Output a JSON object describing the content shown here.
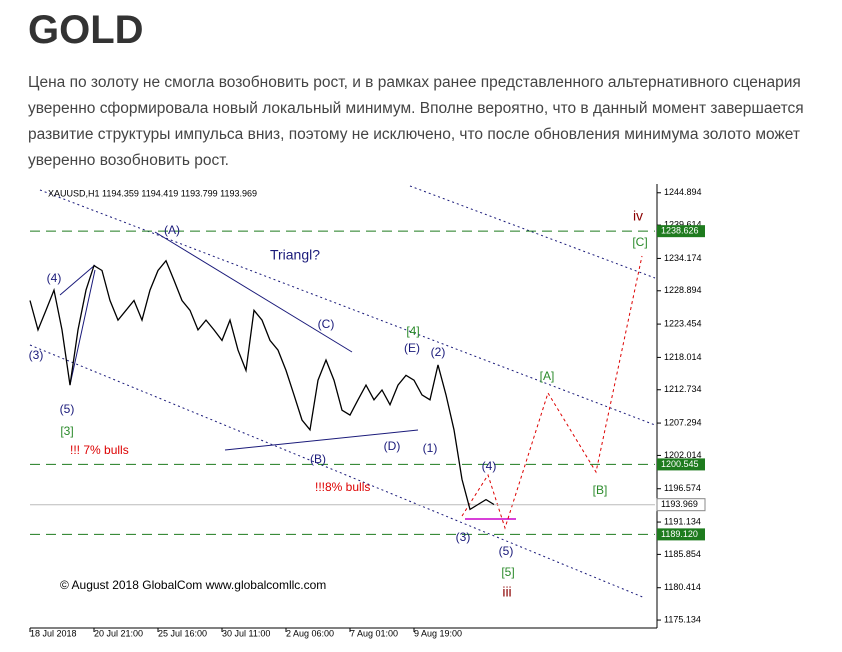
{
  "title": "GOLD",
  "paragraph": "Цена по золоту не смогла возобновить рост, и в рамках ранее представленного альтернативного сценария уверенно сформировала новый локальный минимум. Вполне вероятно, что в данный момент завершается развитие структуры импульса вниз, поэтому не исключено, что после обновления минимума золото может уверенно возобновить рост.",
  "chart_data": {
    "type": "line",
    "header": "XAUUSD,H1  1194.359 1194.419 1193.799 1193.969",
    "categories": [
      "18 Jul 2018",
      null,
      null,
      null,
      null,
      null,
      null,
      null,
      "20 Jul 21:00",
      null,
      null,
      null,
      null,
      null,
      null,
      null,
      "25 Jul 16:00",
      null,
      null,
      null,
      null,
      null,
      null,
      null,
      "30 Jul 11:00",
      null,
      null,
      null,
      null,
      null,
      null,
      null,
      "2 Aug 06:00",
      null,
      null,
      null,
      null,
      null,
      null,
      null,
      "7 Aug 01:00",
      null,
      null,
      null,
      null,
      null,
      null,
      null,
      "9 Aug 19:00",
      null,
      null,
      null,
      null,
      null,
      null,
      null,
      null,
      null,
      null
    ],
    "series": [
      {
        "name": "XAUUSD",
        "color": "#000000",
        "values": [
          1227.3,
          1222.5,
          1225.7,
          1229.0,
          1222.5,
          1213.5,
          1222.5,
          1229.0,
          1233.0,
          1232.2,
          1227.3,
          1224.1,
          1225.7,
          1227.3,
          1224.1,
          1229.0,
          1232.2,
          1233.8,
          1230.6,
          1227.3,
          1225.7,
          1222.5,
          1224.1,
          1222.5,
          1220.8,
          1224.1,
          1219.2,
          1215.9,
          1225.7,
          1224.1,
          1220.8,
          1219.2,
          1215.9,
          1211.9,
          1207.8,
          1206.2,
          1214.3,
          1217.6,
          1214.3,
          1209.4,
          1208.6,
          1211.1,
          1213.5,
          1211.1,
          1212.7,
          1210.3,
          1213.5,
          1215.1,
          1214.3,
          1211.9,
          1211.1,
          1216.8,
          1211.9,
          1206.2,
          1198.1,
          1193.2,
          1194.0,
          1194.8,
          1194.0
        ]
      }
    ],
    "ylim": [
      1174,
      1246
    ],
    "yticks": [
      1244.894,
      1239.614,
      1234.174,
      1228.894,
      1223.454,
      1218.014,
      1212.734,
      1207.294,
      1202.014,
      1196.574,
      1191.134,
      1185.854,
      1180.414,
      1175.134
    ],
    "levels": [
      {
        "value": 1238.626,
        "color": "#1e7b1e"
      },
      {
        "value": 1200.545,
        "color": "#1e7b1e"
      },
      {
        "value": 1189.12,
        "label": "1189.120",
        "color": "#1e7b1e"
      }
    ],
    "current_price": 1193.969,
    "annotations": [
      {
        "text": "(A)",
        "color": "#1a1a7a"
      },
      {
        "text": "Triangl?",
        "color": "#1a1a7a"
      },
      {
        "text": "(C)",
        "color": "#1a1a7a"
      },
      {
        "text": "[4]",
        "color": "#2a8a2a"
      },
      {
        "text": "(E)",
        "color": "#1a1a7a"
      },
      {
        "text": "(2)",
        "color": "#1a1a7a"
      },
      {
        "text": "(4)",
        "color": "#1a1a7a"
      },
      {
        "text": "(3)",
        "color": "#1a1a7a"
      },
      {
        "text": "(5)",
        "color": "#1a1a7a"
      },
      {
        "text": "[3]",
        "color": "#2a8a2a"
      },
      {
        "text": "!!! 7% bulls",
        "color": "#dd0000"
      },
      {
        "text": "(B)",
        "color": "#1a1a7a"
      },
      {
        "text": "(D)",
        "color": "#1a1a7a"
      },
      {
        "text": "(1)",
        "color": "#1a1a7a"
      },
      {
        "text": "!!!8% bulls",
        "color": "#dd0000"
      },
      {
        "text": "(4)",
        "color": "#1a1a7a"
      },
      {
        "text": "(3)",
        "color": "#1a1a7a"
      },
      {
        "text": "(5)",
        "color": "#1a1a7a"
      },
      {
        "text": "[5]",
        "color": "#2a8a2a"
      },
      {
        "text": "iii",
        "color": "#8b0000"
      },
      {
        "text": "[A]",
        "color": "#2a8a2a"
      },
      {
        "text": "[B]",
        "color": "#2a8a2a"
      },
      {
        "text": "[C]",
        "color": "#2a8a2a"
      },
      {
        "text": "iv",
        "color": "#8b0000"
      }
    ],
    "copyright": "© August 2018 GlobalCom www.globalcomllc.com"
  }
}
